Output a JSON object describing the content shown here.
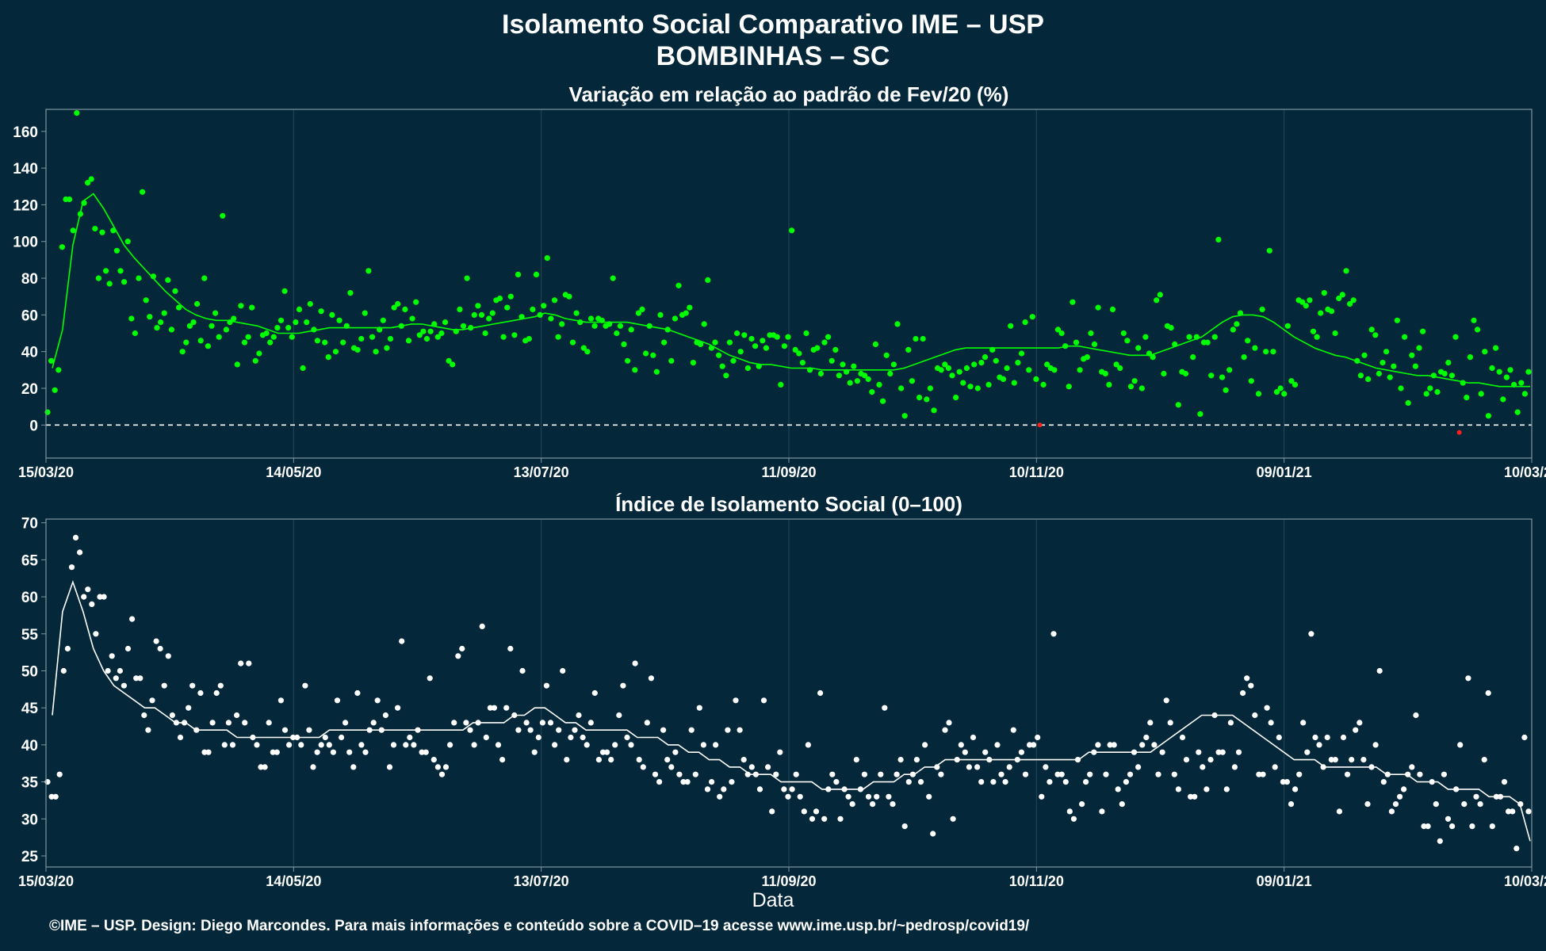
{
  "title_line1": "Isolamento Social Comparativo IME – USP",
  "title_line2": "BOMBINHAS – SC",
  "x_axis_label": "Data",
  "footer": "©IME – USP. Design: Diego Marcondes. Para mais informações e conteúdo sobre a COVID–19 acesse www.ime.usp.br/~pedrosp/covid19/",
  "colors": {
    "background": "#04283a",
    "grid": "#23485a",
    "frame": "#7f95a0",
    "top_series": "#00ff00",
    "top_negative": "#ff2020",
    "bottom_series": "#ffffff",
    "text": "#ffffff"
  },
  "chart_data": [
    {
      "type": "scatter",
      "title": "Variação em relação ao padrão de Fev/20 (%)",
      "x_tick_labels": [
        "15/03/20",
        "14/05/20",
        "13/07/20",
        "11/09/20",
        "10/11/20",
        "09/01/21",
        "10/03/21"
      ],
      "x_range": [
        "15/03/20",
        "10/03/21"
      ],
      "ylim": [
        -18,
        172
      ],
      "y_ticks": [
        0,
        20,
        40,
        60,
        80,
        100,
        120,
        140,
        160
      ],
      "reference_line": 0,
      "series": [
        {
          "key": "points",
          "values": [
            7,
            35,
            19,
            30,
            97,
            123,
            123,
            106,
            170,
            115,
            121,
            132,
            134,
            107,
            80,
            105,
            84,
            77,
            106,
            95,
            84,
            78,
            100,
            58,
            50,
            80,
            127,
            68,
            59,
            81,
            53,
            56,
            61,
            79,
            52,
            73,
            64,
            40,
            45,
            54,
            56,
            66,
            46,
            80,
            43,
            54,
            61,
            48,
            114,
            52,
            56,
            58,
            33,
            65,
            45,
            48,
            64,
            35,
            39,
            49,
            50,
            45,
            48,
            53,
            57,
            73,
            53,
            48,
            56,
            63,
            31,
            56,
            66,
            52,
            46,
            62,
            45,
            37,
            60,
            40,
            57,
            45,
            54,
            72,
            42,
            41,
            47,
            61,
            84,
            48,
            40,
            52,
            57,
            42,
            47,
            64,
            66,
            54,
            63,
            46,
            58,
            67,
            49,
            51,
            47,
            51,
            55,
            48,
            50,
            56,
            35,
            33,
            51,
            63,
            54,
            80,
            53,
            60,
            65,
            60,
            50,
            58,
            61,
            68,
            69,
            48,
            64,
            70,
            49,
            82,
            59,
            46,
            47,
            63,
            82,
            60,
            65,
            91,
            58,
            68,
            48,
            55,
            71,
            70,
            45,
            61,
            56,
            42,
            40,
            58,
            54,
            58,
            57,
            54,
            55,
            80,
            50,
            54,
            44,
            35,
            52,
            30,
            61,
            63,
            39,
            54,
            38,
            29,
            60,
            45,
            52,
            35,
            58,
            76,
            60,
            61,
            64,
            34,
            45,
            44,
            55,
            79,
            42,
            45,
            38,
            32,
            27,
            45,
            35,
            50,
            40,
            49,
            31,
            47,
            43,
            32,
            46,
            42,
            49,
            49,
            48,
            22,
            43,
            48,
            106,
            41,
            39,
            34,
            50,
            30,
            41,
            42,
            28,
            45,
            48,
            35,
            41,
            27,
            33,
            29,
            23,
            32,
            24,
            28,
            27,
            25,
            18,
            44,
            22,
            13,
            38,
            28,
            33,
            55,
            20,
            5,
            41,
            24,
            47,
            15,
            47,
            14,
            20,
            8,
            31,
            30,
            33,
            31,
            27,
            15,
            29,
            23,
            31,
            21,
            33,
            20,
            34,
            37,
            22,
            41,
            35,
            26,
            25,
            31,
            54,
            23,
            34,
            39,
            56,
            30,
            59,
            25,
            0,
            22,
            33,
            31,
            30,
            52,
            50,
            43,
            21,
            67,
            45,
            30,
            36,
            37,
            50,
            44,
            64,
            29,
            28,
            22,
            63,
            33,
            31,
            50,
            46,
            21,
            24,
            42,
            20,
            48,
            39,
            37,
            68,
            71,
            28,
            54,
            53,
            44,
            11,
            29,
            28,
            48,
            37,
            48,
            6,
            45,
            45,
            27,
            48,
            101,
            26,
            19,
            30,
            52,
            55,
            61,
            37,
            46,
            24,
            42,
            17,
            63,
            40,
            95,
            40,
            18,
            20,
            17,
            54,
            24,
            22,
            68,
            67,
            65,
            68,
            51,
            48,
            61,
            72,
            63,
            62,
            50,
            69,
            71,
            84,
            66,
            68,
            35,
            27,
            38,
            25,
            52,
            49,
            28,
            34,
            40,
            26,
            32,
            57,
            20,
            48,
            12,
            38,
            32,
            42,
            51,
            17,
            20,
            27,
            18,
            29,
            28,
            34,
            27,
            48,
            -4,
            23,
            15,
            37,
            57,
            52,
            17,
            40,
            5,
            31,
            42,
            29,
            14,
            26,
            30,
            22,
            7,
            23,
            17,
            29
          ]
        },
        {
          "key": "moving_average",
          "values": [
            31,
            52,
            98,
            122,
            126,
            118,
            108,
            98,
            91,
            85,
            79,
            73,
            68,
            63,
            60,
            58,
            57,
            57,
            56,
            55,
            54,
            52,
            50,
            50,
            50,
            51,
            52,
            53,
            53,
            53,
            53,
            53,
            53,
            53,
            54,
            55,
            55,
            54,
            53,
            52,
            52,
            53,
            54,
            55,
            56,
            57,
            58,
            59,
            61,
            60,
            58,
            57,
            56,
            56,
            56,
            56,
            56,
            55,
            54,
            53,
            52,
            50,
            48,
            46,
            44,
            41,
            38,
            36,
            34,
            33,
            33,
            32,
            31,
            31,
            31,
            30,
            30,
            30,
            30,
            30,
            30,
            30,
            30,
            31,
            33,
            35,
            37,
            39,
            41,
            42,
            42,
            42,
            42,
            42,
            42,
            42,
            42,
            42,
            42,
            43,
            43,
            42,
            41,
            40,
            39,
            38,
            38,
            38,
            40,
            42,
            44,
            46,
            48,
            52,
            56,
            59,
            60,
            60,
            59,
            56,
            52,
            48,
            45,
            42,
            40,
            38,
            37,
            35,
            33,
            31,
            30,
            29,
            28,
            27,
            27,
            26,
            25,
            24,
            23,
            23,
            22,
            21,
            21,
            21,
            21
          ]
        }
      ],
      "negative_points": [
        0,
        -4
      ]
    },
    {
      "type": "scatter",
      "title": "Índice de Isolamento Social (0–100)",
      "x_tick_labels": [
        "15/03/20",
        "14/05/20",
        "13/07/20",
        "11/09/20",
        "10/11/20",
        "09/01/21",
        "10/03/21"
      ],
      "x_range": [
        "15/03/20",
        "10/03/21"
      ],
      "ylim": [
        23.5,
        70.5
      ],
      "y_ticks": [
        25,
        30,
        35,
        40,
        45,
        50,
        55,
        60,
        65,
        70
      ],
      "series": [
        {
          "key": "points",
          "values": [
            35,
            33,
            33,
            36,
            50,
            53,
            64,
            68,
            66,
            60,
            61,
            59,
            55,
            60,
            60,
            50,
            52,
            49,
            50,
            48,
            53,
            57,
            49,
            49,
            44,
            42,
            46,
            54,
            53,
            48,
            52,
            44,
            43,
            41,
            43,
            45,
            48,
            42,
            47,
            39,
            39,
            43,
            47,
            48,
            40,
            43,
            40,
            44,
            51,
            43,
            51,
            41,
            40,
            37,
            37,
            43,
            39,
            39,
            46,
            42,
            40,
            41,
            41,
            40,
            48,
            42,
            37,
            39,
            40,
            41,
            40,
            39,
            46,
            41,
            43,
            39,
            37,
            47,
            40,
            39,
            42,
            43,
            46,
            42,
            44,
            37,
            40,
            45,
            54,
            40,
            41,
            40,
            42,
            39,
            39,
            49,
            38,
            37,
            36,
            37,
            40,
            43,
            52,
            53,
            43,
            42,
            40,
            43,
            56,
            41,
            45,
            45,
            40,
            38,
            45,
            53,
            44,
            42,
            50,
            43,
            42,
            39,
            41,
            43,
            48,
            43,
            40,
            42,
            50,
            38,
            41,
            42,
            44,
            41,
            40,
            43,
            47,
            38,
            39,
            39,
            38,
            40,
            44,
            48,
            41,
            40,
            51,
            38,
            37,
            43,
            49,
            36,
            35,
            42,
            38,
            37,
            39,
            36,
            35,
            35,
            42,
            36,
            45,
            40,
            34,
            35,
            40,
            33,
            34,
            42,
            35,
            46,
            42,
            38,
            36,
            37,
            36,
            34,
            46,
            37,
            31,
            36,
            39,
            34,
            33,
            34,
            36,
            33,
            31,
            40,
            30,
            31,
            47,
            30,
            34,
            36,
            35,
            30,
            34,
            33,
            32,
            38,
            34,
            36,
            33,
            32,
            33,
            36,
            45,
            33,
            32,
            36,
            38,
            29,
            35,
            36,
            38,
            35,
            40,
            33,
            28,
            37,
            36,
            42,
            43,
            30,
            38,
            40,
            39,
            37,
            41,
            37,
            35,
            39,
            38,
            35,
            40,
            36,
            35,
            37,
            42,
            38,
            39,
            36,
            40,
            40,
            41,
            33,
            37,
            35,
            55,
            36,
            36,
            35,
            31,
            30,
            38,
            32,
            35,
            36,
            39,
            40,
            31,
            36,
            40,
            40,
            34,
            32,
            35,
            36,
            39,
            37,
            40,
            41,
            43,
            40,
            36,
            39,
            46,
            43,
            36,
            34,
            41,
            38,
            33,
            33,
            39,
            37,
            34,
            38,
            44,
            39,
            39,
            34,
            43,
            37,
            39,
            47,
            49,
            48,
            44,
            36,
            36,
            45,
            43,
            37,
            41,
            35,
            35,
            32,
            34,
            36,
            43,
            39,
            55,
            41,
            40,
            37,
            41,
            38,
            38,
            31,
            41,
            36,
            38,
            42,
            43,
            38,
            32,
            37,
            40,
            50,
            35,
            36,
            31,
            32,
            33,
            34,
            36,
            37,
            44,
            36,
            29,
            29,
            35,
            32,
            27,
            36,
            30,
            29,
            34,
            40,
            32,
            49,
            29,
            33,
            32,
            38,
            47,
            29,
            33,
            33,
            35,
            31,
            31,
            26,
            32,
            41,
            31
          ]
        },
        {
          "key": "moving_average",
          "values": [
            44,
            58,
            62,
            58,
            53,
            50,
            48,
            47,
            46,
            45,
            45,
            44,
            43,
            43,
            42,
            42,
            42,
            42,
            41,
            41,
            41,
            41,
            41,
            41,
            41,
            41,
            41,
            42,
            42,
            42,
            42,
            42,
            42,
            42,
            42,
            42,
            42,
            42,
            42,
            42,
            42,
            43,
            43,
            43,
            43,
            44,
            44,
            45,
            45,
            44,
            43,
            43,
            42,
            42,
            42,
            42,
            42,
            41,
            41,
            41,
            40,
            40,
            39,
            39,
            38,
            38,
            37,
            37,
            36,
            36,
            36,
            35,
            35,
            35,
            35,
            34,
            34,
            34,
            34,
            34,
            35,
            35,
            35,
            36,
            36,
            37,
            37,
            38,
            38,
            38,
            38,
            38,
            38,
            38,
            38,
            38,
            38,
            38,
            38,
            38,
            38,
            39,
            39,
            39,
            39,
            39,
            39,
            39,
            40,
            41,
            42,
            43,
            44,
            44,
            44,
            44,
            43,
            42,
            41,
            40,
            39,
            38,
            38,
            38,
            37,
            37,
            37,
            37,
            37,
            37,
            36,
            36,
            36,
            35,
            35,
            35,
            34,
            34,
            34,
            34,
            33,
            33,
            33,
            32,
            27
          ]
        }
      ]
    }
  ]
}
